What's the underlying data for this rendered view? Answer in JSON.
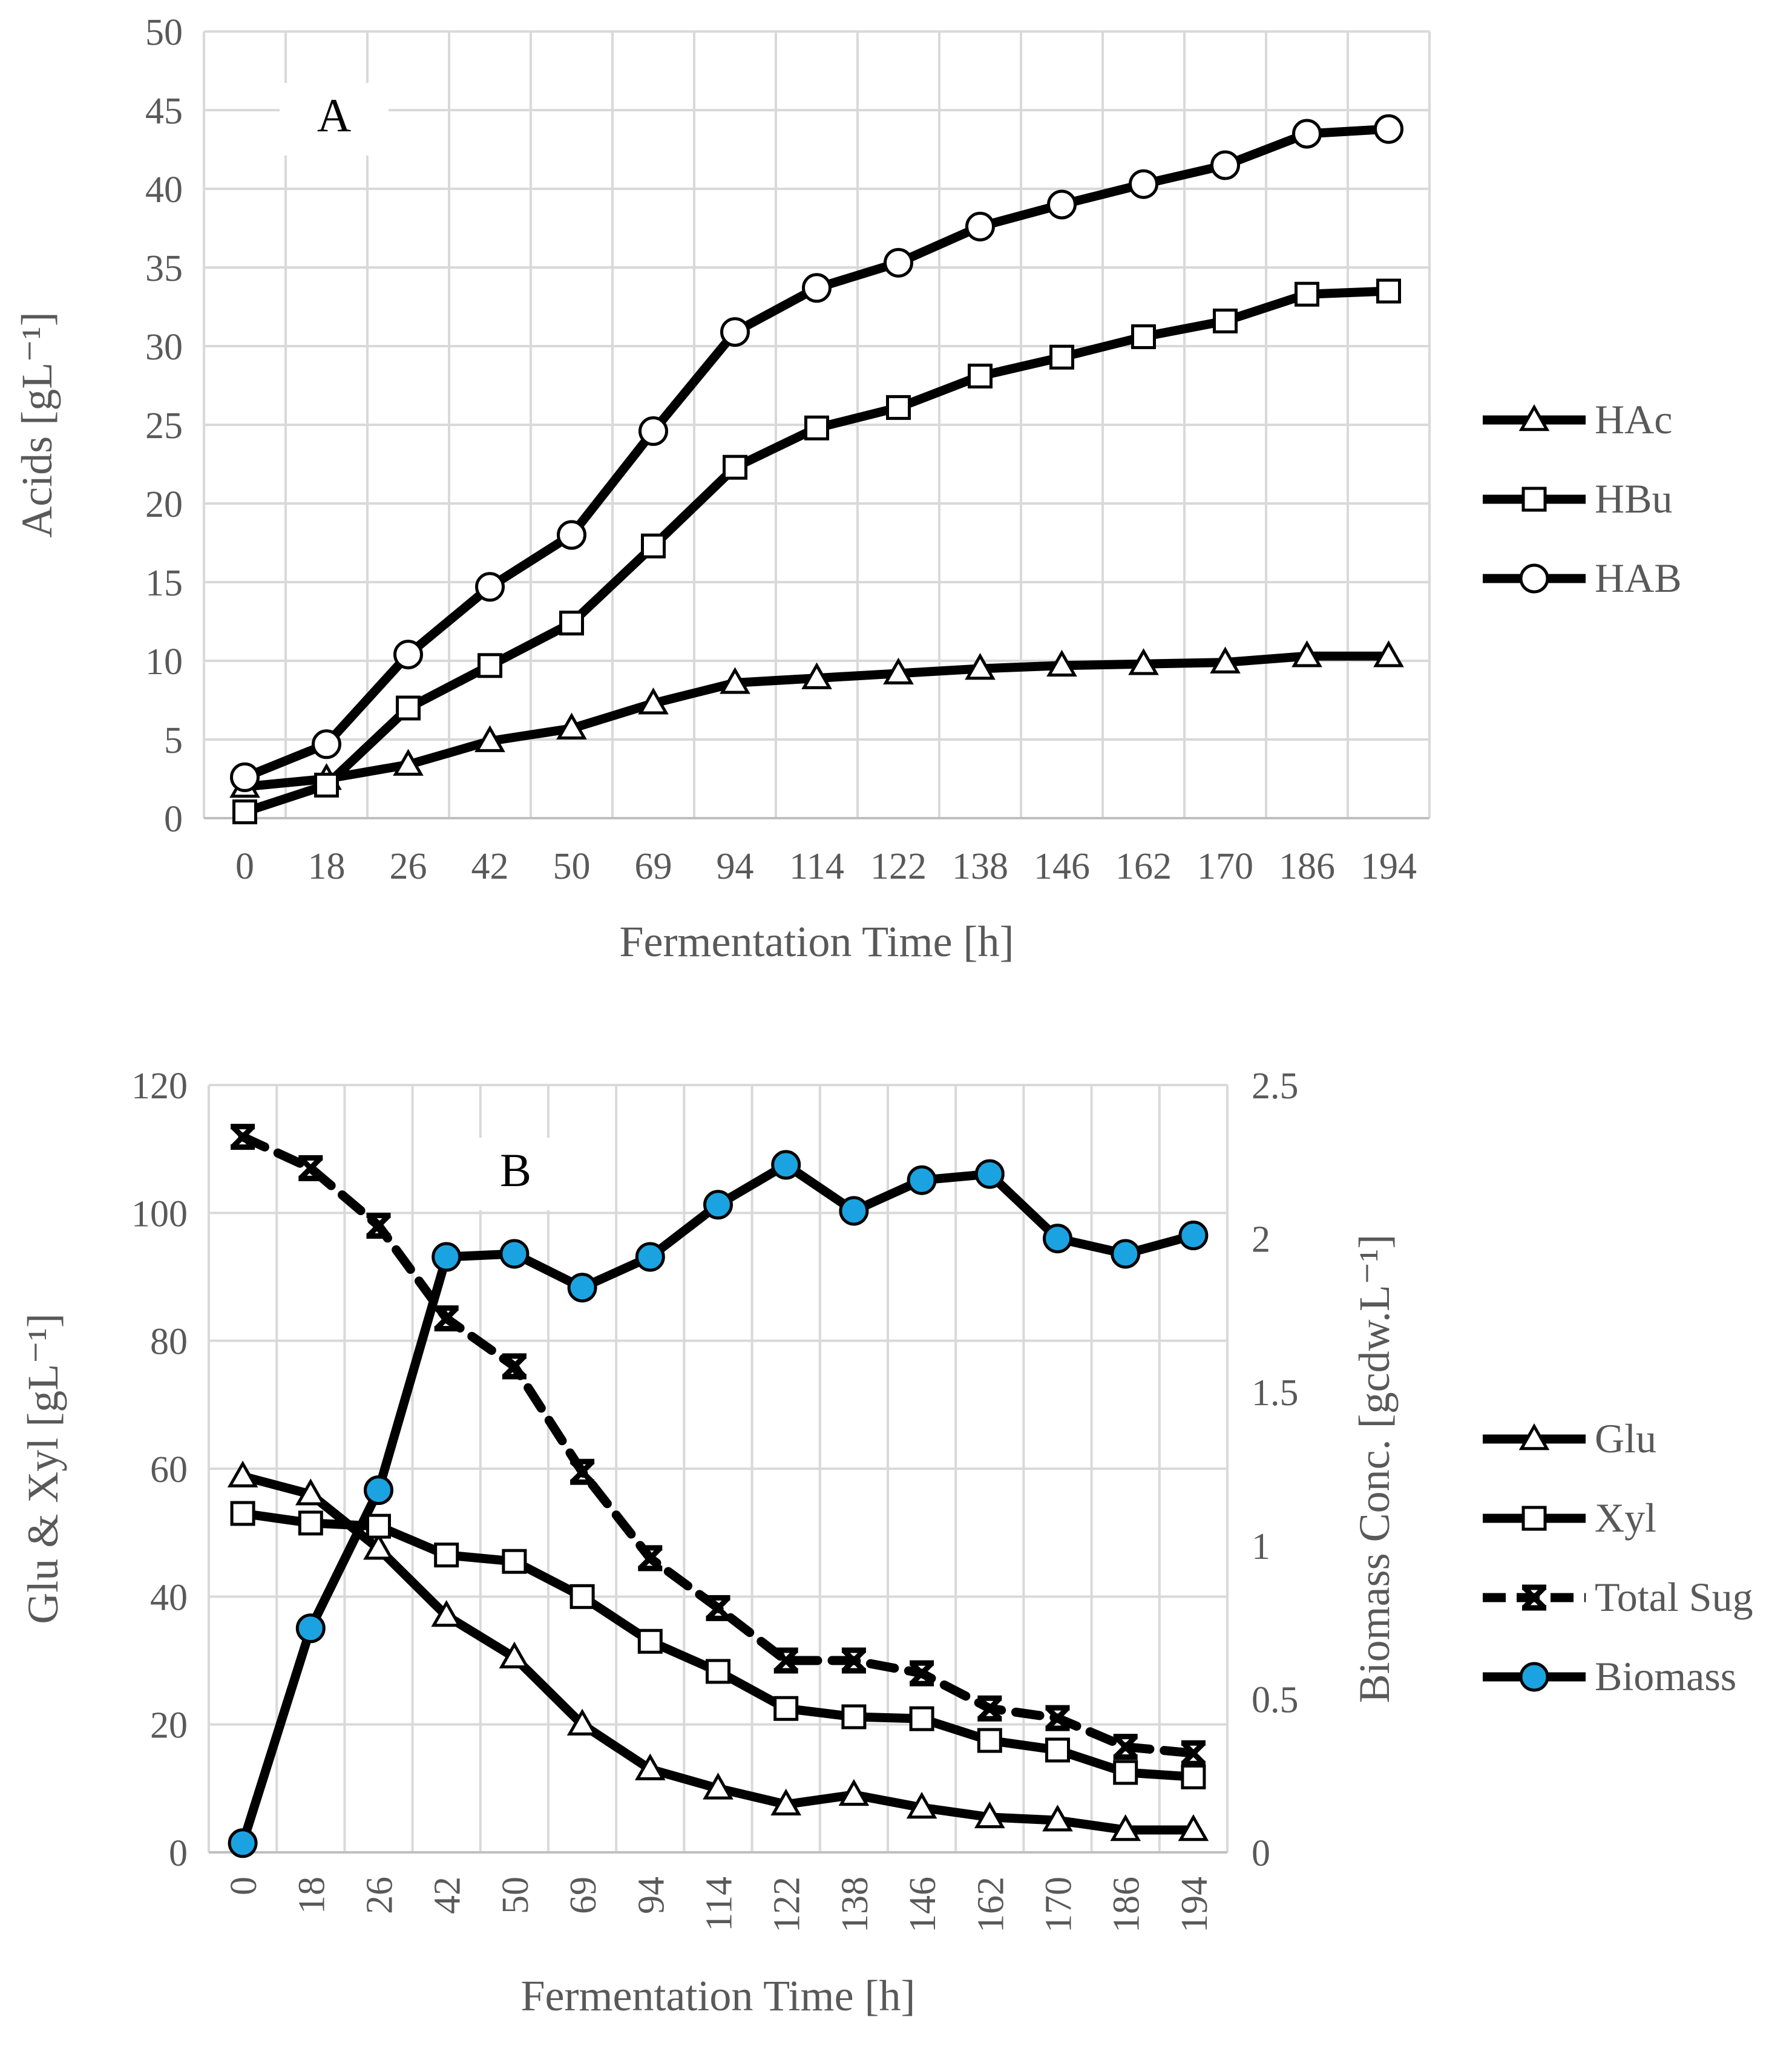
{
  "colors": {
    "line": "#000000",
    "grid": "#d9d9d9",
    "axis": "#bfbfbf",
    "text": "#595959",
    "marker_fill": "#ffffff",
    "biomass_fill": "#1aa3e0"
  },
  "chart_data": [
    {
      "id": "A",
      "type": "line",
      "panel_label": "A",
      "title": "",
      "xlabel": "Fermentation Time [h]",
      "ylabel": "Acids [gL⁻¹]",
      "categories": [
        "0",
        "18",
        "26",
        "42",
        "50",
        "69",
        "94",
        "114",
        "122",
        "138",
        "146",
        "162",
        "170",
        "186",
        "194"
      ],
      "ylim": [
        0,
        50
      ],
      "yticks": [
        "0",
        "5",
        "10",
        "15",
        "20",
        "25",
        "30",
        "35",
        "40",
        "45",
        "50"
      ],
      "grid": true,
      "legend": "right",
      "series": [
        {
          "name": "HAc",
          "marker": "triangle",
          "dash": false,
          "values": [
            2.0,
            2.5,
            3.4,
            4.9,
            5.7,
            7.3,
            8.6,
            8.9,
            9.2,
            9.5,
            9.7,
            9.8,
            9.9,
            10.3,
            10.3
          ]
        },
        {
          "name": "HBu",
          "marker": "square",
          "dash": false,
          "values": [
            0.4,
            2.1,
            7.0,
            9.7,
            12.4,
            17.3,
            22.3,
            24.8,
            26.1,
            28.1,
            29.3,
            30.6,
            31.6,
            33.3,
            33.5
          ]
        },
        {
          "name": "HAB",
          "marker": "circle",
          "dash": false,
          "values": [
            2.6,
            4.7,
            10.4,
            14.7,
            18.0,
            24.6,
            30.9,
            33.7,
            35.3,
            37.6,
            39.0,
            40.3,
            41.5,
            43.5,
            43.8
          ]
        }
      ]
    },
    {
      "id": "B",
      "type": "line",
      "panel_label": "B",
      "title": "",
      "xlabel": "Fermentation Time [h]",
      "ylabel": "Glu & Xyl [gL⁻¹]",
      "y2label": "Biomass Conc. [gcdw.L⁻¹]",
      "categories": [
        "0",
        "18",
        "26",
        "42",
        "50",
        "69",
        "94",
        "114",
        "122",
        "138",
        "146",
        "162",
        "170",
        "186",
        "194"
      ],
      "ylim": [
        0,
        120
      ],
      "yticks": [
        "0",
        "20",
        "40",
        "60",
        "80",
        "100",
        "120"
      ],
      "y2lim": [
        0,
        2.5
      ],
      "y2ticks": [
        "0",
        "0.5",
        "1",
        "1.5",
        "2",
        "2.5"
      ],
      "grid": true,
      "legend": "right",
      "series": [
        {
          "name": "Glu",
          "marker": "triangle",
          "dash": false,
          "axis": "left",
          "values": [
            58.8,
            56.0,
            47.5,
            37.0,
            30.5,
            20.0,
            13.0,
            10.0,
            7.5,
            9.0,
            7.0,
            5.5,
            5.0,
            3.5,
            3.5
          ]
        },
        {
          "name": "Xyl",
          "marker": "square",
          "dash": false,
          "axis": "left",
          "values": [
            53.0,
            51.5,
            51.0,
            46.5,
            45.5,
            40.0,
            33.0,
            28.3,
            22.5,
            21.2,
            20.9,
            17.5,
            16.0,
            12.5,
            11.8
          ]
        },
        {
          "name": "Total Sug",
          "marker": "cross",
          "dash": true,
          "axis": "left",
          "values": [
            111.9,
            107.0,
            98.0,
            83.5,
            76.0,
            59.5,
            46.0,
            38.2,
            30.0,
            30.0,
            28.0,
            22.5,
            21.0,
            16.5,
            15.5
          ]
        },
        {
          "name": "Biomass",
          "marker": "circle",
          "dash": false,
          "axis": "right",
          "values": [
            0.03,
            0.73,
            1.18,
            1.94,
            1.95,
            1.84,
            1.94,
            2.11,
            2.24,
            2.09,
            2.19,
            2.21,
            2.0,
            1.95,
            2.01
          ]
        }
      ]
    }
  ]
}
